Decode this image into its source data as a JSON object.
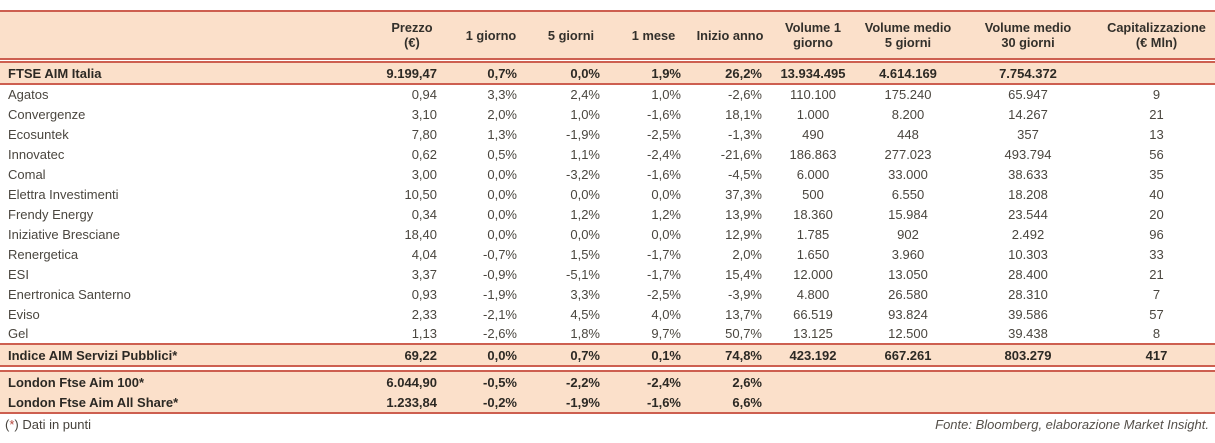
{
  "colors": {
    "accent_line": "#cd5f50",
    "band_background": "#fbe0ca",
    "text_bold": "#2c2924",
    "text_regular": "#4a463f"
  },
  "table": {
    "columns": [
      {
        "id": "name",
        "label": ""
      },
      {
        "id": "prezzo",
        "line1": "Prezzo",
        "line2": "(€)"
      },
      {
        "id": "giorno-1",
        "label": "1 giorno"
      },
      {
        "id": "giorni-5",
        "label": "5 giorni"
      },
      {
        "id": "mese-1",
        "label": "1 mese"
      },
      {
        "id": "inizio-anno",
        "label": "Inizio anno"
      },
      {
        "id": "volume-1-giorno",
        "line1": "Volume 1",
        "line2": "giorno"
      },
      {
        "id": "volume-medio-5-giorni",
        "line1": "Volume medio",
        "line2": "5 giorni"
      },
      {
        "id": "volume-medio-30-giorni",
        "line1": "Volume medio",
        "line2": "30 giorni"
      },
      {
        "id": "capitalizzazione",
        "line1": "Capitalizzazione",
        "line2": "(€ Mln)"
      }
    ],
    "rows": [
      {
        "style": "index",
        "cells": [
          "FTSE AIM Italia",
          "9.199,47",
          "0,7%",
          "0,0%",
          "1,9%",
          "26,2%",
          "13.934.495",
          "4.614.169",
          "7.754.372",
          ""
        ]
      },
      {
        "style": "stock",
        "cells": [
          "Agatos",
          "0,94",
          "3,3%",
          "2,4%",
          "1,0%",
          "-2,6%",
          "110.100",
          "175.240",
          "65.947",
          "9"
        ]
      },
      {
        "style": "stock",
        "cells": [
          "Convergenze",
          "3,10",
          "2,0%",
          "1,0%",
          "-1,6%",
          "18,1%",
          "1.000",
          "8.200",
          "14.267",
          "21"
        ]
      },
      {
        "style": "stock",
        "cells": [
          "Ecosuntek",
          "7,80",
          "1,3%",
          "-1,9%",
          "-2,5%",
          "-1,3%",
          "490",
          "448",
          "357",
          "13"
        ]
      },
      {
        "style": "stock",
        "cells": [
          "Innovatec",
          "0,62",
          "0,5%",
          "1,1%",
          "-2,4%",
          "-21,6%",
          "186.863",
          "277.023",
          "493.794",
          "56"
        ]
      },
      {
        "style": "stock",
        "cells": [
          "Comal",
          "3,00",
          "0,0%",
          "-3,2%",
          "-1,6%",
          "-4,5%",
          "6.000",
          "33.000",
          "38.633",
          "35"
        ]
      },
      {
        "style": "stock",
        "cells": [
          "Elettra Investimenti",
          "10,50",
          "0,0%",
          "0,0%",
          "0,0%",
          "37,3%",
          "500",
          "6.550",
          "18.208",
          "40"
        ]
      },
      {
        "style": "stock",
        "cells": [
          "Frendy Energy",
          "0,34",
          "0,0%",
          "1,2%",
          "1,2%",
          "13,9%",
          "18.360",
          "15.984",
          "23.544",
          "20"
        ]
      },
      {
        "style": "stock",
        "cells": [
          "Iniziative Bresciane",
          "18,40",
          "0,0%",
          "0,0%",
          "0,0%",
          "12,9%",
          "1.785",
          "902",
          "2.492",
          "96"
        ]
      },
      {
        "style": "stock",
        "cells": [
          "Renergetica",
          "4,04",
          "-0,7%",
          "1,5%",
          "-1,7%",
          "2,0%",
          "1.650",
          "3.960",
          "10.303",
          "33"
        ]
      },
      {
        "style": "stock",
        "cells": [
          "ESI",
          "3,37",
          "-0,9%",
          "-5,1%",
          "-1,7%",
          "15,4%",
          "12.000",
          "13.050",
          "28.400",
          "21"
        ]
      },
      {
        "style": "stock",
        "cells": [
          "Enertronica Santerno",
          "0,93",
          "-1,9%",
          "3,3%",
          "-2,5%",
          "-3,9%",
          "4.800",
          "26.580",
          "28.310",
          "7"
        ]
      },
      {
        "style": "stock",
        "cells": [
          "Eviso",
          "2,33",
          "-2,1%",
          "4,5%",
          "4,0%",
          "13,7%",
          "66.519",
          "93.824",
          "39.586",
          "57"
        ]
      },
      {
        "style": "stock",
        "cells": [
          "Gel",
          "1,13",
          "-2,6%",
          "1,8%",
          "9,7%",
          "50,7%",
          "13.125",
          "12.500",
          "39.438",
          "8"
        ]
      },
      {
        "style": "index2",
        "cells": [
          "Indice AIM Servizi Pubblici*",
          "69,22",
          "0,0%",
          "0,7%",
          "0,1%",
          "74,8%",
          "423.192",
          "667.261",
          "803.279",
          "417"
        ]
      },
      {
        "style": "gap"
      },
      {
        "style": "london",
        "cells": [
          "London Ftse Aim 100*",
          "6.044,90",
          "-0,5%",
          "-2,2%",
          "-2,4%",
          "2,6%",
          "",
          "",
          "",
          ""
        ]
      },
      {
        "style": "london-last",
        "cells": [
          "London Ftse Aim All Share*",
          "1.233,84",
          "-0,2%",
          "-1,9%",
          "-1,6%",
          "6,6%",
          "",
          "",
          "",
          ""
        ]
      }
    ]
  },
  "footer": {
    "note": {
      "open": "(",
      "star": "*",
      "rest": ") Dati in punti"
    },
    "source": "Fonte: Bloomberg, elaborazione Market Insight."
  }
}
